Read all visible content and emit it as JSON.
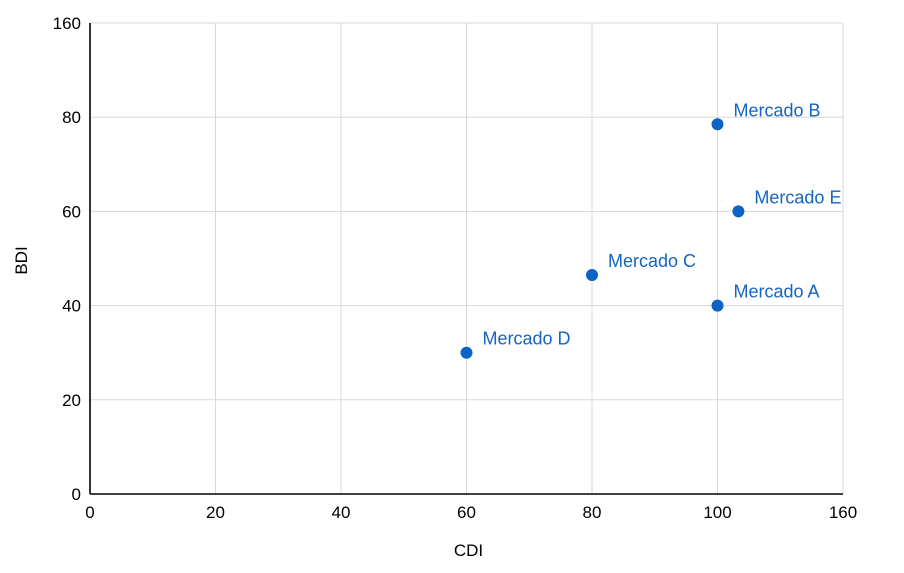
{
  "chart_data": {
    "type": "scatter",
    "xlabel": "CDI",
    "ylabel": "BDI",
    "xlim": [
      0,
      160
    ],
    "ylim": [
      0,
      160
    ],
    "x_ticks": [
      "0",
      "20",
      "40",
      "60",
      "80",
      "100",
      "160"
    ],
    "y_ticks": [
      "0",
      "20",
      "40",
      "60",
      "80",
      "160"
    ],
    "grid": true,
    "point_color": "#0b63c5",
    "label_color": "#1565c0",
    "points": [
      {
        "label": "Mercado A",
        "x": 100,
        "y": 40
      },
      {
        "label": "Mercado B",
        "x": 100,
        "y": 78.5
      },
      {
        "label": "Mercado C",
        "x": 80,
        "y": 46.5
      },
      {
        "label": "Mercado D",
        "x": 60,
        "y": 30
      },
      {
        "label": "Mercado E",
        "x": 110,
        "y": 60
      }
    ]
  }
}
